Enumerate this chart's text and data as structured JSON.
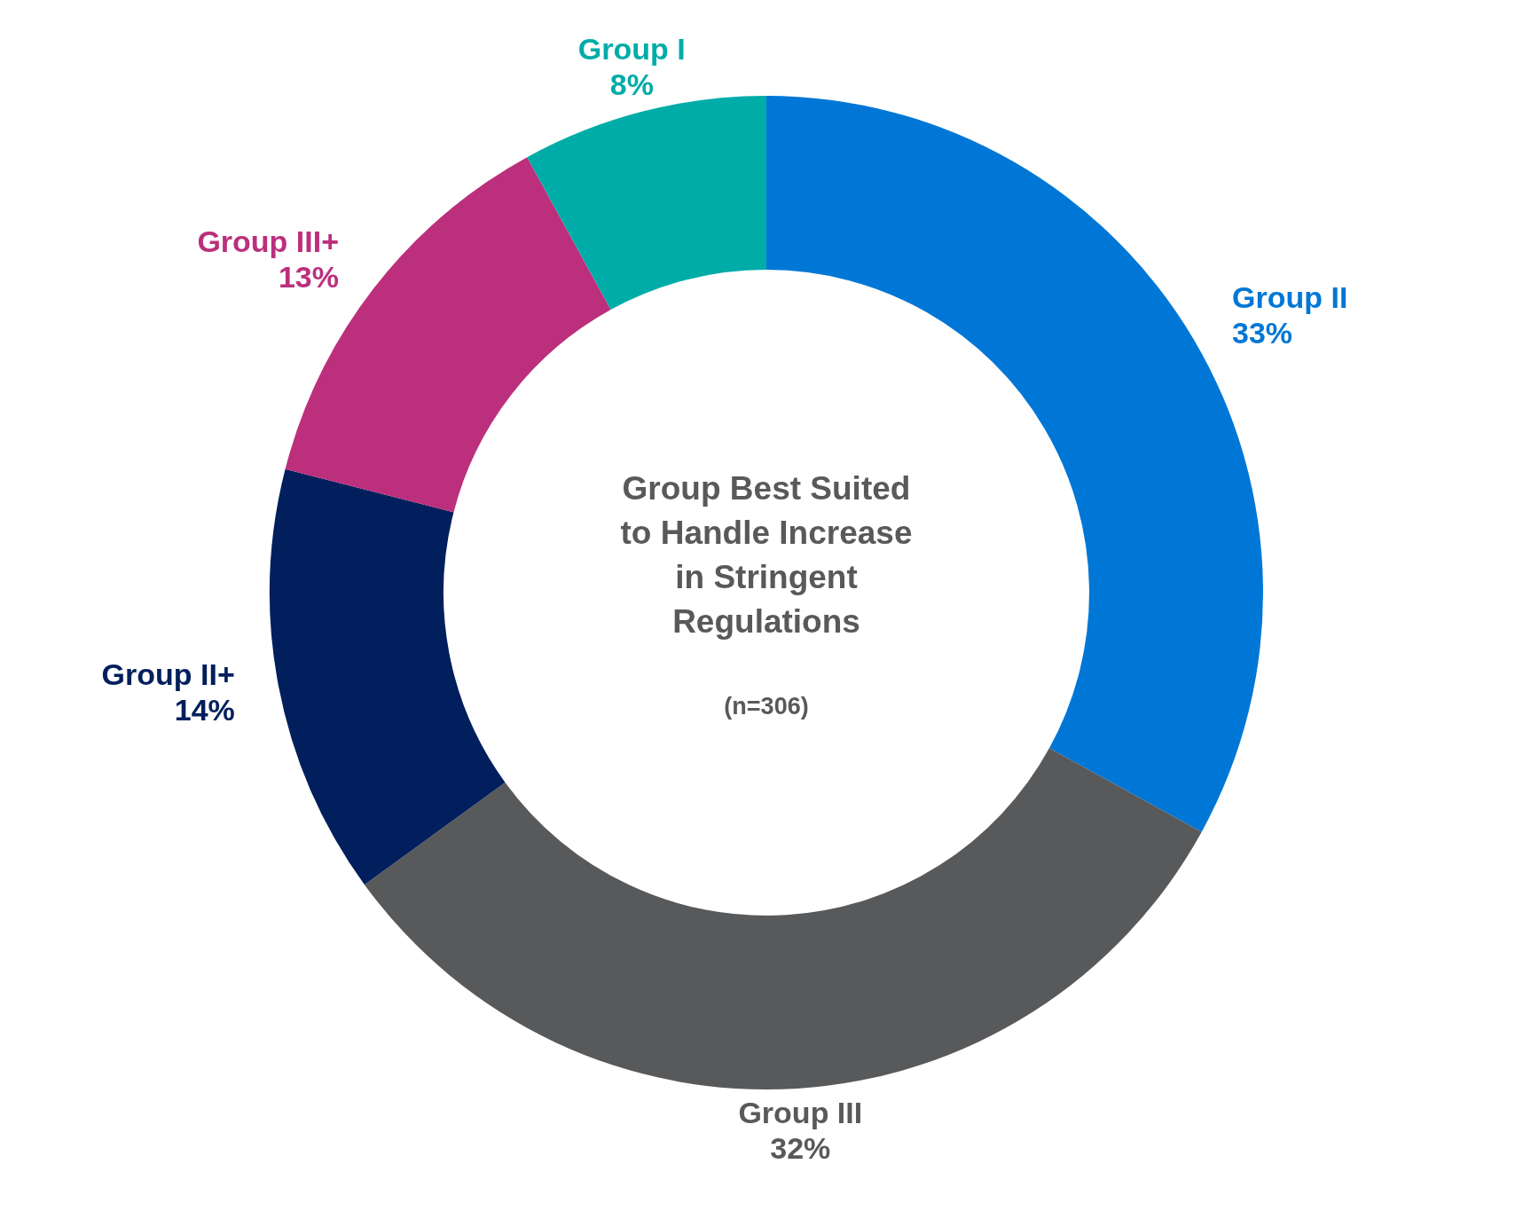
{
  "chart_data": {
    "type": "donut",
    "title": "Group Best Suited to Handle Increase in Stringent Regulations",
    "subtitle": "(n=306)",
    "categories": [
      "Group II",
      "Group III",
      "Group II+",
      "Group III+",
      "Group I"
    ],
    "values": [
      33,
      32,
      14,
      13,
      8
    ],
    "colors": [
      "#0077d6",
      "#58595b",
      "#001f5c",
      "#bc2f7c",
      "#00aca8"
    ],
    "value_labels": [
      "33%",
      "32%",
      "14%",
      "13%",
      "8%"
    ],
    "legend": false
  }
}
